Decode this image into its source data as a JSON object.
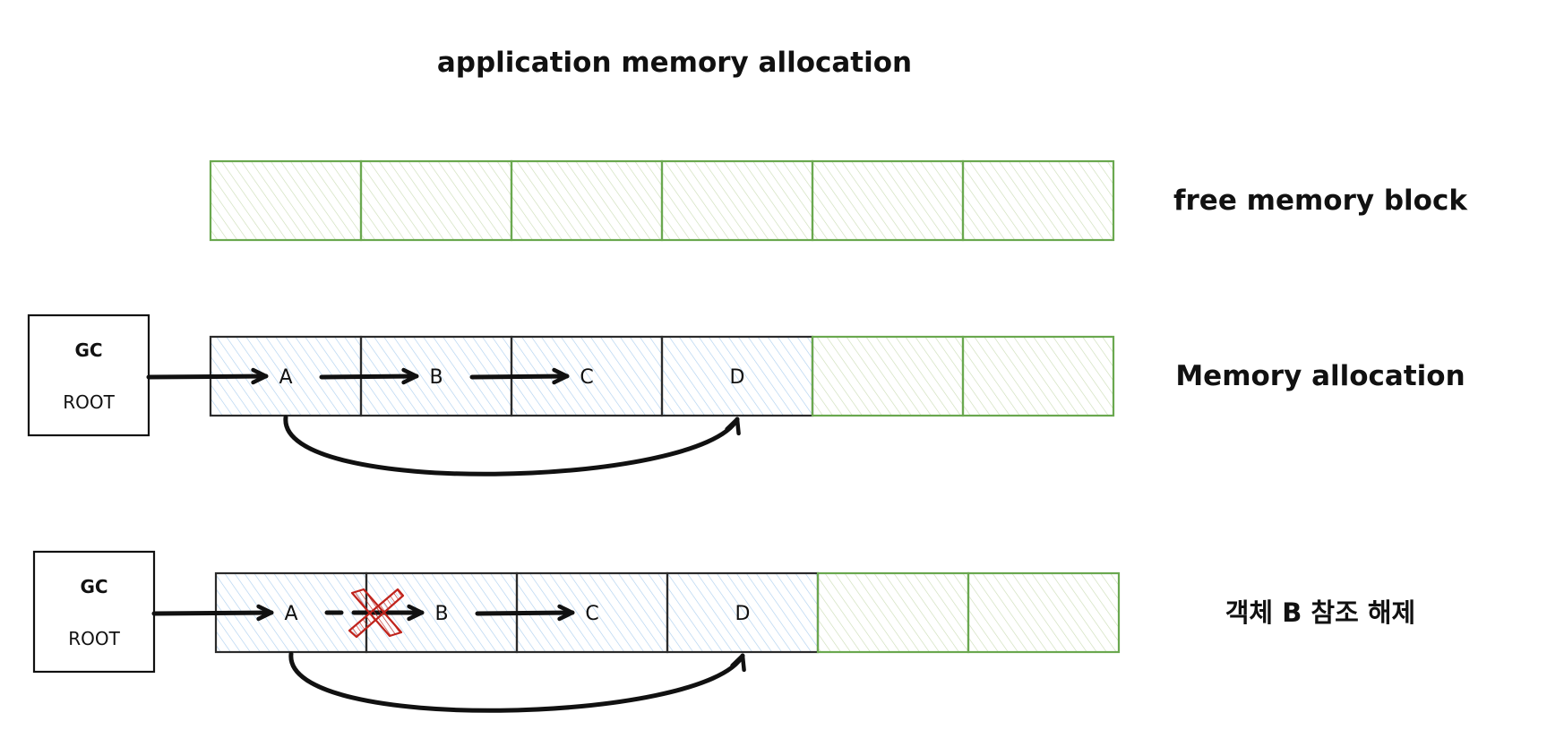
{
  "title": "application memory allocation",
  "colors": {
    "free_stroke": "#6aa84f",
    "free_hatch": "#c9dcb3",
    "used_stroke": "#2b2b2b",
    "used_hatch": "#a9cdee",
    "arrow": "#111111",
    "cross": "#c0231c"
  },
  "rows": [
    {
      "label": "free memory block",
      "gc_root": null,
      "cells": [
        {
          "state": "free",
          "label": ""
        },
        {
          "state": "free",
          "label": ""
        },
        {
          "state": "free",
          "label": ""
        },
        {
          "state": "free",
          "label": ""
        },
        {
          "state": "free",
          "label": ""
        },
        {
          "state": "free",
          "label": ""
        }
      ]
    },
    {
      "label": "Memory allocation",
      "gc_root": {
        "line1": "GC",
        "line2": "ROOT"
      },
      "cells": [
        {
          "state": "used",
          "label": "A"
        },
        {
          "state": "used",
          "label": "B"
        },
        {
          "state": "used",
          "label": "C"
        },
        {
          "state": "used",
          "label": "D"
        },
        {
          "state": "free",
          "label": ""
        },
        {
          "state": "free",
          "label": ""
        }
      ]
    },
    {
      "label": "객체 B 참조 해제",
      "gc_root": {
        "line1": "GC",
        "line2": "ROOT"
      },
      "cells": [
        {
          "state": "used",
          "label": "A"
        },
        {
          "state": "used",
          "label": "B"
        },
        {
          "state": "used",
          "label": "C"
        },
        {
          "state": "used",
          "label": "D"
        },
        {
          "state": "free",
          "label": ""
        },
        {
          "state": "free",
          "label": ""
        }
      ]
    }
  ],
  "references": [
    {
      "row": 1,
      "from": "ROOT",
      "to": "A",
      "removed": false
    },
    {
      "row": 1,
      "from": "A",
      "to": "B",
      "removed": false
    },
    {
      "row": 1,
      "from": "B",
      "to": "C",
      "removed": false
    },
    {
      "row": 1,
      "from": "A",
      "to": "D",
      "removed": false
    },
    {
      "row": 2,
      "from": "ROOT",
      "to": "A",
      "removed": false
    },
    {
      "row": 2,
      "from": "A",
      "to": "B",
      "removed": true
    },
    {
      "row": 2,
      "from": "B",
      "to": "C",
      "removed": false
    },
    {
      "row": 2,
      "from": "A",
      "to": "D",
      "removed": false
    }
  ]
}
